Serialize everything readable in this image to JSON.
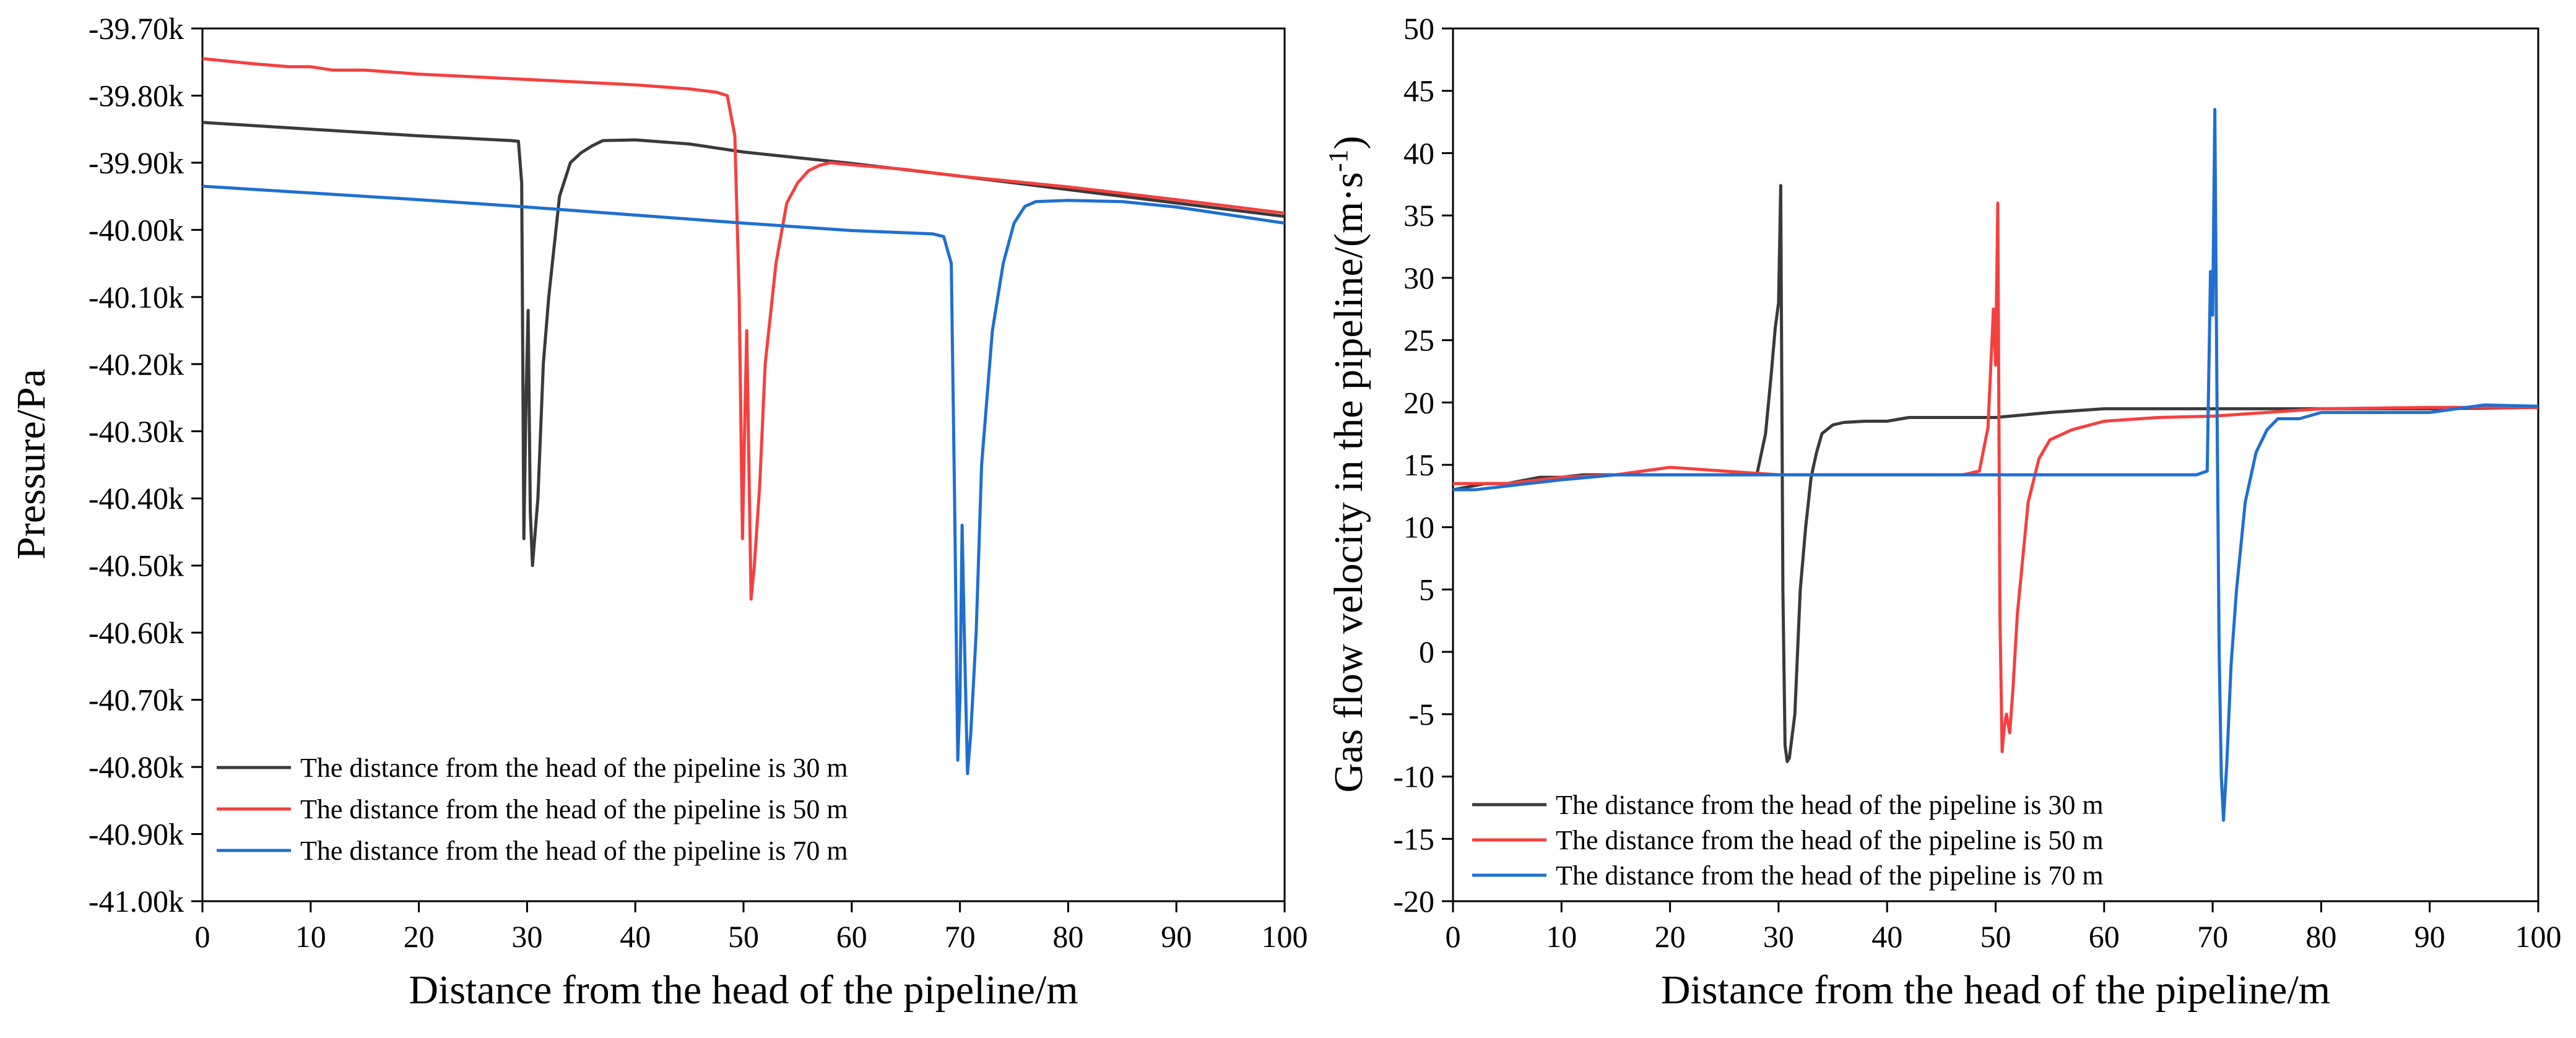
{
  "chart_data": [
    {
      "type": "line",
      "xlabel": "Distance from the head of the pipeline/m",
      "ylabel": "Pressure/Pa",
      "xlim": [
        0,
        100
      ],
      "ylim": [
        -41000,
        -39700
      ],
      "xticks": [
        0,
        10,
        20,
        30,
        40,
        50,
        60,
        70,
        80,
        90,
        100
      ],
      "xtick_labels": [
        "0",
        "10",
        "20",
        "30",
        "40",
        "50",
        "60",
        "70",
        "80",
        "90",
        "100"
      ],
      "yticks": [
        -39700,
        -39800,
        -39900,
        -40000,
        -40100,
        -40200,
        -40300,
        -40400,
        -40500,
        -40600,
        -40700,
        -40800,
        -40900,
        -41000
      ],
      "ytick_labels": [
        "-39.70k",
        "-39.80k",
        "-39.90k",
        "-40.00k",
        "-40.10k",
        "-40.20k",
        "-40.30k",
        "-40.40k",
        "-40.50k",
        "-40.60k",
        "-40.70k",
        "-40.80k",
        "-40.90k",
        "-41.00k"
      ],
      "legend_position": "bottom-left",
      "series": [
        {
          "name": "The distance from the head of the pipeline is 30 m",
          "color": "#3a3a3a",
          "x": [
            0,
            10,
            20,
            28.5,
            29.2,
            29.5,
            29.7,
            29.9,
            30.1,
            30.3,
            30.5,
            31,
            31.5,
            32,
            33,
            34,
            35,
            36,
            37,
            40,
            45,
            50,
            60,
            70,
            80,
            90,
            100
          ],
          "y": [
            -39840,
            -39850,
            -39860,
            -39867,
            -39868,
            -39930,
            -40460,
            -40250,
            -40120,
            -40420,
            -40500,
            -40400,
            -40200,
            -40100,
            -39950,
            -39900,
            -39885,
            -39875,
            -39867,
            -39866,
            -39872,
            -39884,
            -39901,
            -39920,
            -39940,
            -39960,
            -39980
          ]
        },
        {
          "name": "The distance from the head of the pipeline is 50 m",
          "color": "#f5403f",
          "x": [
            0,
            5,
            8,
            10,
            12,
            15,
            20,
            30,
            40,
            45,
            47.5,
            48.5,
            49.2,
            49.6,
            49.9,
            50.1,
            50.3,
            50.5,
            50.7,
            51,
            51.5,
            52,
            53,
            54,
            55,
            56,
            57,
            58,
            60,
            65,
            70,
            80,
            90,
            100
          ],
          "y": [
            -39745,
            -39753,
            -39757,
            -39757,
            -39762,
            -39762,
            -39768,
            -39776,
            -39784,
            -39790,
            -39795,
            -39800,
            -39860,
            -40100,
            -40460,
            -40300,
            -40150,
            -40350,
            -40550,
            -40500,
            -40380,
            -40200,
            -40050,
            -39960,
            -39930,
            -39912,
            -39904,
            -39900,
            -39903,
            -39910,
            -39920,
            -39936,
            -39955,
            -39975
          ]
        },
        {
          "name": "The distance from the head of the pipeline is 70 m",
          "color": "#1f6fd1",
          "x": [
            0,
            10,
            20,
            30,
            40,
            50,
            60,
            67.5,
            68.5,
            69.2,
            69.5,
            69.8,
            70,
            70.2,
            70.4,
            70.7,
            71,
            71.5,
            72,
            73,
            74,
            75,
            76,
            77,
            80,
            85,
            90,
            100
          ],
          "y": [
            -39935,
            -39945,
            -39955,
            -39966,
            -39978,
            -39990,
            -40001,
            -40006,
            -40010,
            -40050,
            -40400,
            -40790,
            -40700,
            -40440,
            -40600,
            -40810,
            -40750,
            -40600,
            -40350,
            -40150,
            -40050,
            -39990,
            -39965,
            -39958,
            -39956,
            -39958,
            -39966,
            -39990
          ]
        }
      ]
    },
    {
      "type": "line",
      "xlabel": "Distance from the head of the pipeline/m",
      "ylabel_main": "Gas flow velocity in the pipeline/(m·s",
      "ylabel_sup": "-1",
      "ylabel_end": ")",
      "xlim": [
        0,
        100
      ],
      "ylim": [
        -20,
        50
      ],
      "xticks": [
        0,
        10,
        20,
        30,
        40,
        50,
        60,
        70,
        80,
        90,
        100
      ],
      "xtick_labels": [
        "0",
        "10",
        "20",
        "30",
        "40",
        "50",
        "60",
        "70",
        "80",
        "90",
        "100"
      ],
      "yticks": [
        50,
        45,
        40,
        35,
        30,
        25,
        20,
        15,
        10,
        5,
        0,
        -5,
        -10,
        -15,
        -20
      ],
      "ytick_labels": [
        "50",
        "45",
        "40",
        "35",
        "30",
        "25",
        "20",
        "15",
        "10",
        "5",
        "0",
        "-5",
        "-10",
        "-15",
        "-20"
      ],
      "legend_position": "bottom-left",
      "series": [
        {
          "name": "The distance from the head of the pipeline is 30 m",
          "color": "#3a3a3a",
          "x": [
            0,
            3,
            5,
            8,
            10,
            12,
            15,
            20,
            25,
            28,
            28.8,
            29.3,
            29.7,
            30,
            30.2,
            30.4,
            30.6,
            30.8,
            31,
            31.5,
            32,
            32.5,
            33,
            33.5,
            34,
            35,
            36,
            38,
            40,
            42,
            45,
            50,
            55,
            60,
            70,
            80,
            90,
            100
          ],
          "y": [
            13,
            13.5,
            13.5,
            14,
            14,
            14.2,
            14.2,
            14.2,
            14.2,
            14.2,
            17.5,
            22,
            26,
            28,
            37.4,
            5,
            -7.5,
            -8.8,
            -8.5,
            -5,
            5,
            10,
            14,
            16,
            17.5,
            18.2,
            18.4,
            18.5,
            18.5,
            18.8,
            18.8,
            18.8,
            19.2,
            19.5,
            19.5,
            19.5,
            19.5,
            19.6
          ]
        },
        {
          "name": "The distance from the head of the pipeline is 50 m",
          "color": "#f5403f",
          "x": [
            0,
            2,
            5,
            10,
            15,
            20,
            25,
            30,
            40,
            47,
            48.5,
            49.3,
            49.8,
            50,
            50.2,
            50.4,
            50.6,
            50.8,
            51,
            51.3,
            51.6,
            52,
            53,
            54,
            55,
            57,
            60,
            65,
            70,
            80,
            90,
            100
          ],
          "y": [
            13.5,
            13.5,
            13.5,
            14,
            14.2,
            14.8,
            14.5,
            14.2,
            14.2,
            14.2,
            14.5,
            18,
            27.5,
            23,
            36,
            3,
            -8,
            -6,
            -5,
            -6.5,
            -3,
            3,
            12,
            15.5,
            17,
            17.8,
            18.5,
            18.8,
            18.9,
            19.5,
            19.6,
            19.6
          ]
        },
        {
          "name": "The distance from the head of the pipeline is 70 m",
          "color": "#1f6fd1",
          "x": [
            0,
            2,
            5,
            10,
            15,
            20,
            30,
            40,
            50,
            60,
            68.5,
            69.5,
            69.8,
            70,
            70.2,
            70.4,
            70.6,
            70.8,
            71,
            71.3,
            71.7,
            72.2,
            73,
            74,
            75,
            76,
            78,
            80,
            85,
            90,
            95,
            100
          ],
          "y": [
            13,
            13,
            13.3,
            13.8,
            14.2,
            14.2,
            14.2,
            14.2,
            14.2,
            14.2,
            14.2,
            14.5,
            30.5,
            27,
            43.5,
            20,
            0,
            -10,
            -13.5,
            -9,
            -1,
            5,
            12,
            16,
            17.8,
            18.7,
            18.7,
            19.2,
            19.2,
            19.2,
            19.8,
            19.7
          ]
        }
      ]
    }
  ]
}
